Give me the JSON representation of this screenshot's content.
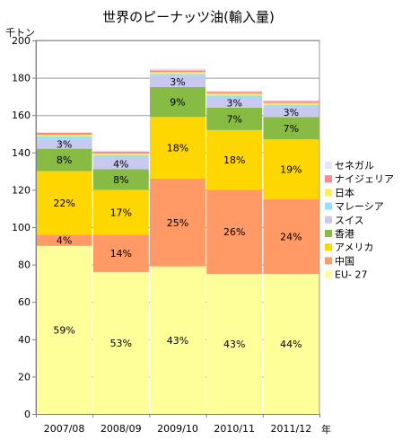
{
  "chart_data": {
    "type": "bar",
    "stacked": true,
    "title": "世界のピーナッツ油(輸入量)",
    "ylabel": "千トン",
    "xlabel": "年",
    "ylim": [
      0,
      200
    ],
    "yticks": [
      0,
      20,
      40,
      60,
      80,
      100,
      120,
      140,
      160,
      180,
      200
    ],
    "grid": true,
    "legend": "right",
    "categories": [
      "2007/08",
      "2008/09",
      "2009/10",
      "2010/11",
      "2011/12"
    ],
    "series": [
      {
        "name": "EU- 27",
        "color": "#ffff99",
        "values": [
          90,
          76,
          79,
          75,
          75
        ],
        "labels": [
          "59%",
          "53%",
          "43%",
          "43%",
          "44%"
        ]
      },
      {
        "name": "中国",
        "color": "#ff9966",
        "values": [
          6,
          20,
          47,
          45,
          40
        ],
        "labels": [
          "4%",
          "14%",
          "25%",
          "26%",
          "24%"
        ]
      },
      {
        "name": "アメリカ",
        "color": "#ffd700",
        "values": [
          34,
          24,
          33,
          32,
          32
        ],
        "labels": [
          "22%",
          "17%",
          "18%",
          "18%",
          "19%"
        ]
      },
      {
        "name": "香港",
        "color": "#88bb44",
        "values": [
          12,
          11,
          16,
          12,
          12
        ],
        "labels": [
          "8%",
          "8%",
          "9%",
          "7%",
          "7%"
        ]
      },
      {
        "name": "スイス",
        "color": "#c8c8f0",
        "values": [
          5,
          6,
          6,
          5,
          5
        ],
        "labels": [
          "3%",
          "4%",
          "3%",
          "3%",
          "3%"
        ]
      },
      {
        "name": "マレーシア",
        "color": "#99ddff",
        "values": [
          1.5,
          1.5,
          1.0,
          1.5,
          1.5
        ],
        "labels": [
          "",
          "",
          "",
          "",
          ""
        ]
      },
      {
        "name": "日本",
        "color": "#ffee55",
        "values": [
          1.0,
          1.0,
          1.0,
          1.0,
          1.0
        ],
        "labels": [
          "",
          "",
          "",
          "",
          ""
        ]
      },
      {
        "name": "ナイジェリア",
        "color": "#ff8888",
        "values": [
          1.0,
          1.0,
          1.0,
          1.0,
          1.0
        ],
        "labels": [
          "",
          "",
          "",
          "",
          ""
        ]
      },
      {
        "name": "セネガル",
        "color": "#e6e6fa",
        "values": [
          0.5,
          0.5,
          1.0,
          0.5,
          0.5
        ],
        "labels": [
          "",
          "",
          "",
          "",
          ""
        ]
      }
    ]
  }
}
